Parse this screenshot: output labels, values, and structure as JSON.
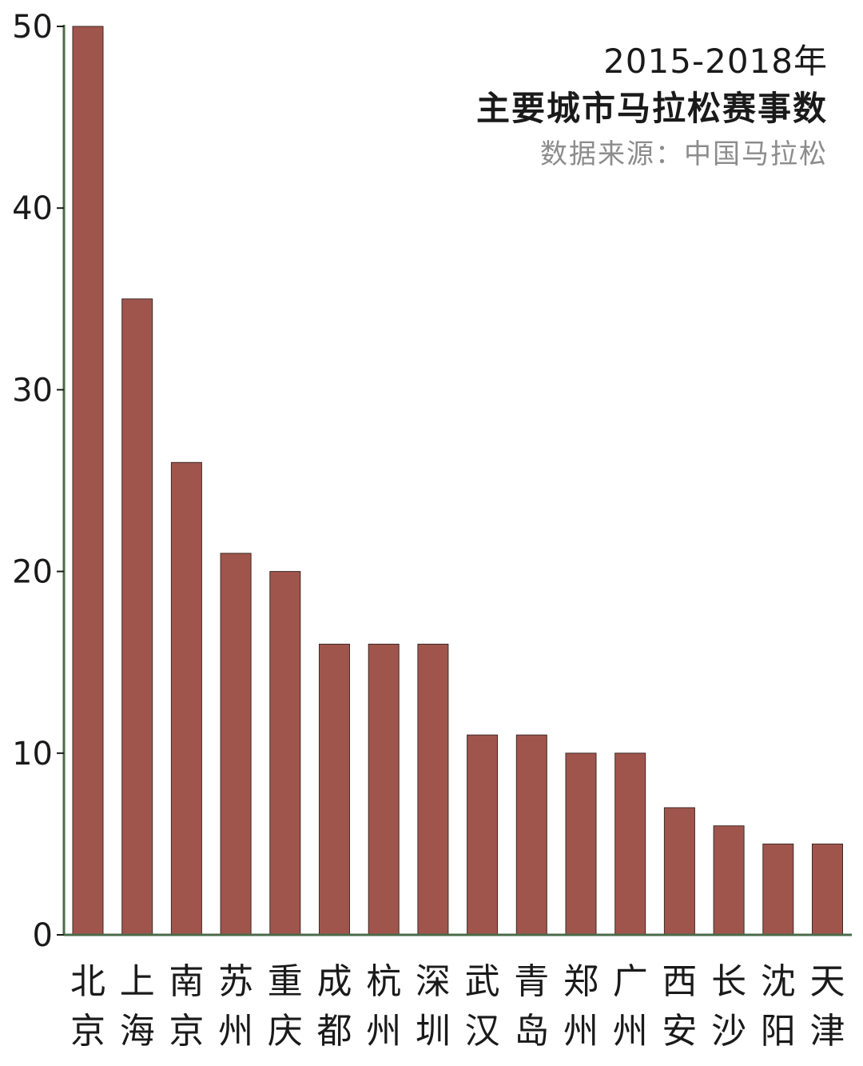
{
  "chart_data": {
    "type": "bar",
    "title": "2015-2018年",
    "subtitle": "主要城市马拉松赛事数",
    "source": "数据来源：中国马拉松",
    "xlabel": "",
    "ylabel": "",
    "ylim": [
      0,
      50
    ],
    "yticks": [
      0,
      10,
      20,
      30,
      40,
      50
    ],
    "grid": false,
    "categories": [
      "北京",
      "上海",
      "南京",
      "苏州",
      "重庆",
      "成都",
      "杭州",
      "深圳",
      "武汉",
      "青岛",
      "郑州",
      "广州",
      "西安",
      "长沙",
      "沈阳",
      "天津"
    ],
    "values": [
      50,
      35,
      26,
      21,
      20,
      16,
      16,
      16,
      11,
      11,
      10,
      10,
      7,
      6,
      5,
      5
    ],
    "bar_color": "#a0554c",
    "axis_color": "#4a6b4a"
  }
}
